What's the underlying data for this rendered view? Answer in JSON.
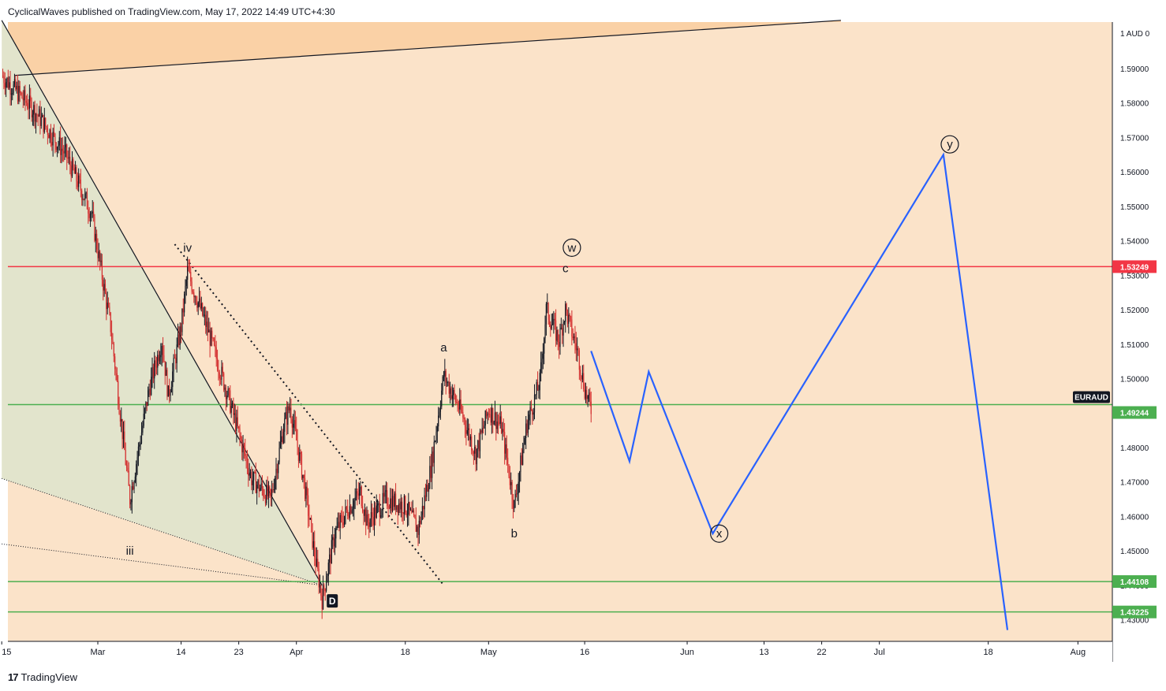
{
  "header": {
    "publish_line": "CyclicalWaves published on TradingView.com, May 17, 2022 14:49 UTC+4:30"
  },
  "footer": {
    "brand": "TradingView",
    "logo_glyph": "17"
  },
  "colors": {
    "background": "#fbe3c9",
    "upper_zone": "#fad1a6",
    "wedge_fill": "#e2e4cc",
    "candle_up": "#131722",
    "candle_down": "#d32f2f",
    "resistance": "#f23645",
    "support": "#4caf50",
    "projection": "#2962ff"
  },
  "chart_data": {
    "type": "candlestick",
    "symbol": "EURAUD",
    "currency_label": "1 AUD 0",
    "ylim": [
      1.426,
      1.606
    ],
    "y_ticks": [
      "1.59000",
      "1.58000",
      "1.57000",
      "1.56000",
      "1.55000",
      "1.54000",
      "1.53000",
      "1.52000",
      "1.51000",
      "1.50000",
      "1.49000",
      "1.48000",
      "1.47000",
      "1.46000",
      "1.45000",
      "1.44000",
      "1.43000"
    ],
    "x_ticks": [
      {
        "label": "15",
        "day": -15
      },
      {
        "label": "Mar",
        "day": 0
      },
      {
        "label": "14",
        "day": 13
      },
      {
        "label": "23",
        "day": 22
      },
      {
        "label": "Apr",
        "day": 31
      },
      {
        "label": "18",
        "day": 48
      },
      {
        "label": "May",
        "day": 61
      },
      {
        "label": "16",
        "day": 76
      },
      {
        "label": "Jun",
        "day": 92
      },
      {
        "label": "13",
        "day": 104
      },
      {
        "label": "22",
        "day": 113
      },
      {
        "label": "Jul",
        "day": 122
      },
      {
        "label": "18",
        "day": 139
      },
      {
        "label": "Aug",
        "day": 153
      }
    ],
    "price_path": [
      {
        "day": -15,
        "price": 1.588
      },
      {
        "day": -10,
        "price": 1.578
      },
      {
        "day": -5,
        "price": 1.565
      },
      {
        "day": -1,
        "price": 1.548
      },
      {
        "day": 2,
        "price": 1.515
      },
      {
        "day": 5,
        "price": 1.465
      },
      {
        "day": 8,
        "price": 1.497
      },
      {
        "day": 10,
        "price": 1.511
      },
      {
        "day": 11,
        "price": 1.495
      },
      {
        "day": 13,
        "price": 1.515
      },
      {
        "day": 14,
        "price": 1.531
      },
      {
        "day": 17,
        "price": 1.515
      },
      {
        "day": 20,
        "price": 1.497
      },
      {
        "day": 24,
        "price": 1.471
      },
      {
        "day": 27,
        "price": 1.465
      },
      {
        "day": 29,
        "price": 1.486
      },
      {
        "day": 30,
        "price": 1.492
      },
      {
        "day": 32,
        "price": 1.472
      },
      {
        "day": 34,
        "price": 1.447
      },
      {
        "day": 35,
        "price": 1.436
      },
      {
        "day": 37,
        "price": 1.455
      },
      {
        "day": 39,
        "price": 1.462
      },
      {
        "day": 41,
        "price": 1.467
      },
      {
        "day": 42,
        "price": 1.458
      },
      {
        "day": 45,
        "price": 1.465
      },
      {
        "day": 48,
        "price": 1.463
      },
      {
        "day": 50,
        "price": 1.456
      },
      {
        "day": 52,
        "price": 1.474
      },
      {
        "day": 54,
        "price": 1.501
      },
      {
        "day": 57,
        "price": 1.489
      },
      {
        "day": 59,
        "price": 1.478
      },
      {
        "day": 61,
        "price": 1.491
      },
      {
        "day": 63,
        "price": 1.486
      },
      {
        "day": 64,
        "price": 1.475
      },
      {
        "day": 65,
        "price": 1.463
      },
      {
        "day": 67,
        "price": 1.487
      },
      {
        "day": 69,
        "price": 1.499
      },
      {
        "day": 70,
        "price": 1.52
      },
      {
        "day": 72,
        "price": 1.511
      },
      {
        "day": 73,
        "price": 1.52
      },
      {
        "day": 75,
        "price": 1.507
      },
      {
        "day": 76,
        "price": 1.497
      },
      {
        "day": 77,
        "price": 1.491
      }
    ],
    "price_lines": [
      {
        "name": "resistance",
        "price": 1.53249,
        "label": "1.53249",
        "color": "#f23645"
      },
      {
        "name": "current",
        "price": 1.49244,
        "label": "1.49244",
        "color": "#4caf50",
        "symbol_tag": "EURAUD"
      },
      {
        "name": "support-1",
        "price": 1.44108,
        "label": "1.44108",
        "color": "#4caf50"
      },
      {
        "name": "support-2",
        "price": 1.43225,
        "label": "1.43225",
        "color": "#4caf50"
      }
    ],
    "projection": [
      {
        "day": 77,
        "price": 1.508
      },
      {
        "day": 83,
        "price": 1.476
      },
      {
        "day": 86,
        "price": 1.502
      },
      {
        "day": 96,
        "price": 1.455
      },
      {
        "day": 132,
        "price": 1.565
      },
      {
        "day": 142,
        "price": 1.427
      }
    ],
    "wave_labels": [
      {
        "text": "iii",
        "day": 5,
        "price": 1.45,
        "circled": false
      },
      {
        "text": "iv",
        "day": 14,
        "price": 1.538,
        "circled": false
      },
      {
        "text": "a",
        "day": 54,
        "price": 1.509,
        "circled": false
      },
      {
        "text": "b",
        "day": 65,
        "price": 1.455,
        "circled": false
      },
      {
        "text": "c",
        "day": 73,
        "price": 1.532,
        "circled": false
      },
      {
        "text": "w",
        "day": 74,
        "price": 1.538,
        "circled": true
      },
      {
        "text": "x",
        "day": 97,
        "price": 1.455,
        "circled": true
      },
      {
        "text": "y",
        "day": 133,
        "price": 1.568,
        "circled": true
      },
      {
        "text": "D",
        "day": 35,
        "price": 1.439,
        "circled": false,
        "boxed": true
      }
    ],
    "trendlines": [
      {
        "name": "upper-channel",
        "from": {
          "day": -13,
          "price": 1.588
        },
        "to": {
          "day": 116,
          "price": 1.604
        },
        "style": "solid"
      },
      {
        "name": "wedge-upper",
        "from": {
          "day": -15,
          "price": 1.604
        },
        "to": {
          "day": 35,
          "price": 1.44
        },
        "style": "solid"
      },
      {
        "name": "wedge-lower-1",
        "from": {
          "day": -15,
          "price": 1.471
        },
        "to": {
          "day": 35,
          "price": 1.44
        },
        "style": "dotted"
      },
      {
        "name": "wedge-lower-2",
        "from": {
          "day": -15,
          "price": 1.452
        },
        "to": {
          "day": 35,
          "price": 1.44
        },
        "style": "dotted"
      },
      {
        "name": "dotted-breakout",
        "from": {
          "day": 12,
          "price": 1.539
        },
        "to": {
          "day": 54,
          "price": 1.44
        },
        "style": "dotted"
      }
    ]
  }
}
